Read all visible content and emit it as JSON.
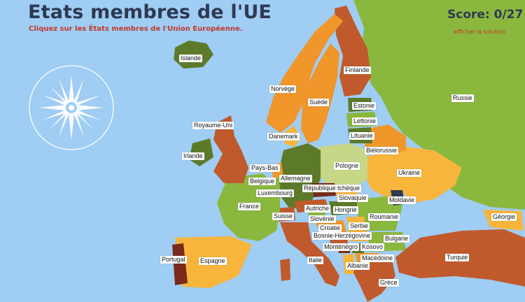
{
  "header": {
    "title": "Etats membres de l'UE",
    "subtitle": "Cliquez sur les États membres de l'Union Européenne.",
    "score_label": "Score: 0/27",
    "solution_link": "afficher la solution"
  },
  "colors": {
    "sea": "#9fcdf3",
    "green_light": "#8ab83f",
    "green_dark": "#5d7a2a",
    "orange": "#f0962a",
    "orange_light": "#f8b53b",
    "red_brown": "#c05a2c",
    "dark_red": "#7a2a1a",
    "pale": "#c7d788",
    "title": "#2e3a52",
    "accent_red": "#c0392b"
  },
  "labels": {
    "islande": "Islande",
    "norvege": "Norvège",
    "suede": "Suède",
    "finlande": "Finlande",
    "russie": "Russie",
    "estonie": "Estonie",
    "lettonie": "Lettonie",
    "lituanie": "Lituanie",
    "bielorussie": "Biélorussie",
    "royaume_uni": "Royaume-Uni",
    "irlande": "Irlande",
    "danemark": "Danemark",
    "pays_bas": "Pays-Bas",
    "allemagne": "Allemagne",
    "pologne": "Pologne",
    "ukraine": "Ukraine",
    "belgique": "Belgique",
    "luxembourg": "Luxembourg",
    "republique_tcheque": "République tchèque",
    "slovaquie": "Slovaquie",
    "moldavie": "Moldavie",
    "france": "France",
    "autriche": "Autriche",
    "hongrie": "Hongrie",
    "suisse": "Suisse",
    "slovenie": "Slovénie",
    "roumanie": "Roumanie",
    "georgie": "Géorgie",
    "croatie": "Croatie",
    "serbie": "Serbie",
    "bosnie": "Bosnie-Herzégovine",
    "bulgarie": "Bulgarie",
    "montenegro": "Monténégro",
    "kosovo": "Kosovo",
    "portugal": "Portugal",
    "espagne": "Espagne",
    "italie": "Italie",
    "macedoine": "Macédoine",
    "turquie": "Turquie",
    "albanie": "Albanie",
    "grece": "Grèce"
  }
}
